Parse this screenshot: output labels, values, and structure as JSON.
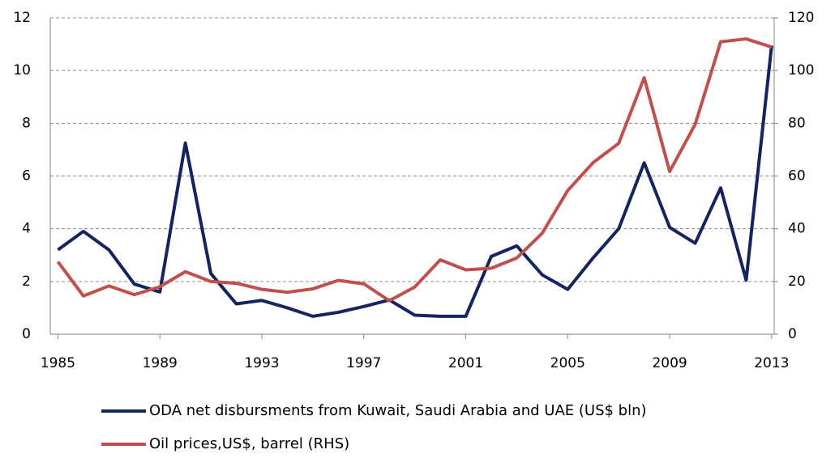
{
  "chart_data": {
    "type": "line",
    "x": [
      1985,
      1986,
      1987,
      1988,
      1989,
      1990,
      1991,
      1992,
      1993,
      1994,
      1995,
      1996,
      1997,
      1998,
      1999,
      2000,
      2001,
      2002,
      2003,
      2004,
      2005,
      2006,
      2007,
      2008,
      2009,
      2010,
      2011,
      2012,
      2013
    ],
    "xlim": [
      1984.7,
      2013.1
    ],
    "xticks": [
      1985,
      1989,
      1993,
      1997,
      2001,
      2005,
      2009,
      2013
    ],
    "ylim": [
      0,
      12
    ],
    "yticks": [
      0,
      2,
      4,
      6,
      8,
      10,
      12
    ],
    "y2lim": [
      0,
      120
    ],
    "y2ticks": [
      0,
      20,
      40,
      60,
      80,
      100,
      120
    ],
    "grid": true,
    "series": [
      {
        "name": "ODA net disbursments from Kuwait, Saudi Arabia and UAE (US$ bln)",
        "color": "#14245e",
        "values": [
          3.2,
          3.9,
          3.2,
          1.9,
          1.6,
          7.25,
          2.3,
          1.15,
          1.28,
          1.0,
          0.68,
          0.83,
          1.05,
          1.3,
          0.72,
          0.68,
          0.68,
          2.95,
          3.35,
          2.25,
          1.7,
          2.9,
          4.0,
          6.5,
          4.05,
          3.45,
          5.55,
          2.05,
          10.95
        ]
      },
      {
        "name": "Oil prices,US$, barrel (RHS)",
        "color": "#c0504d",
        "axis": "y2",
        "values": [
          27.5,
          14.5,
          18.3,
          15,
          18,
          23.7,
          20,
          19.3,
          17,
          15.9,
          17.2,
          20.4,
          19.1,
          12.7,
          17.9,
          28.2,
          24.4,
          25,
          28.9,
          38.3,
          54.5,
          65.1,
          72.4,
          97.3,
          61.7,
          79.6,
          110.9,
          112,
          108.9
        ]
      }
    ]
  }
}
